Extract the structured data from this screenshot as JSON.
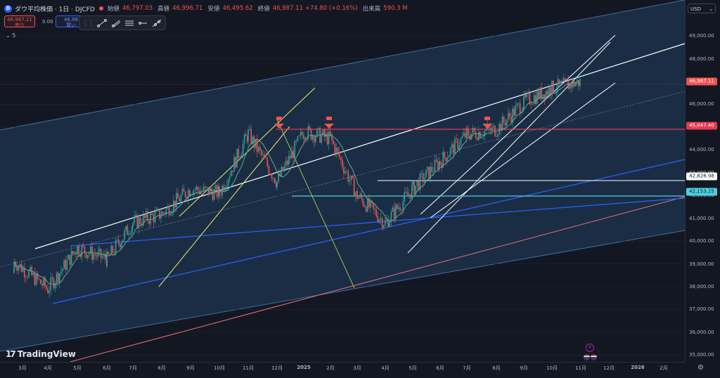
{
  "legend": {
    "symbol_icon": "dow-jones-icon",
    "title": "ダウ平均株価 · 1日 · DJCFD",
    "ohlc": [
      {
        "label": "始値",
        "value": "46,797.03"
      },
      {
        "label": "高値",
        "value": "46,996.71"
      },
      {
        "label": "安値",
        "value": "46,495.62"
      },
      {
        "label": "終値",
        "value": "46,987.11 +74.80 (+0.16%)"
      },
      {
        "label": "出来高",
        "value": "590.3 M"
      }
    ],
    "visibility_icon": "eye-icon"
  },
  "trade": {
    "sell_price": "46,987.11",
    "sell_label": "売り",
    "spread": "0.00",
    "buy_price": "46,98",
    "buy_label": "買い",
    "collapse_label": "⌄ 5"
  },
  "drawing_toolbar": {
    "tools": [
      "trend-line-icon",
      "ray-icon",
      "parallel-channel-icon",
      "horizontal-ray-icon",
      "extended-line-icon"
    ]
  },
  "price_scale": {
    "currency": "USD",
    "ticks": [
      "49,000.00",
      "48,000.00",
      "47,000.00",
      "46,000.00",
      "45,000.00",
      "44,000.00",
      "43,000.00",
      "42,000.00",
      "41,000.00",
      "40,000.00",
      "39,000.00",
      "38,000.00",
      "37,000.00",
      "36,000.00",
      "35,000.00"
    ],
    "labels": [
      {
        "text": "46,987.11",
        "bg": "#ef5350",
        "fg": "#ffffff"
      },
      {
        "text": "45,047.40",
        "bg": "#e53950",
        "fg": "#ffffff"
      },
      {
        "text": "42,826.98",
        "bg": "#ffffff",
        "fg": "#131722"
      },
      {
        "text": "42,153.25",
        "bg": "#4dd0e1",
        "fg": "#131722"
      }
    ]
  },
  "time_axis": {
    "labels": [
      "3月",
      "4月",
      "5月",
      "6月",
      "7月",
      "8月",
      "9月",
      "10月",
      "11月",
      "12月",
      "2025",
      "2月",
      "3月",
      "4月",
      "5月",
      "6月",
      "7月",
      "8月",
      "9月",
      "10月",
      "11月",
      "12月",
      "2026",
      "2月"
    ]
  },
  "branding": {
    "logo_text": "TradingView"
  },
  "chart_data": {
    "type": "candlestick",
    "symbol": "DJCFD",
    "interval": "1日",
    "last_price": 46987.11,
    "ylim": [
      34700,
      49900
    ],
    "x": [
      "2024-03",
      "2024-04",
      "2024-05",
      "2024-06",
      "2024-07",
      "2024-08",
      "2024-09",
      "2024-10",
      "2024-11",
      "2024-12",
      "2025-01",
      "2025-02",
      "2025-03",
      "2025-04",
      "2025-05",
      "2025-06",
      "2025-07",
      "2025-08",
      "2025-09",
      "2025-10",
      "2025-11"
    ],
    "close": [
      39100,
      37900,
      39700,
      39200,
      40800,
      41200,
      42300,
      42100,
      44700,
      42600,
      44800,
      44500,
      42000,
      40800,
      42300,
      43500,
      44700,
      44900,
      46100,
      46700,
      46987
    ],
    "horizontal_levels": [
      45047.4,
      42826.98,
      42153.25
    ],
    "colors": {
      "up": "#26a69a",
      "down": "#ef5350",
      "channel_fill": "#1d3550",
      "channel_border": "#3f6fa6"
    }
  }
}
